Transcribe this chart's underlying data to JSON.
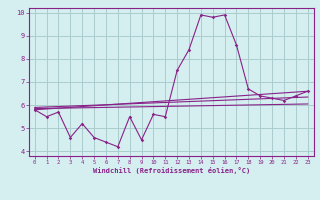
{
  "xlabel": "Windchill (Refroidissement éolien,°C)",
  "ylabel": "",
  "bg_color": "#d5eef0",
  "grid_color": "#aacccc",
  "line_color": "#882288",
  "xlim": [
    -0.5,
    23.5
  ],
  "ylim": [
    3.8,
    10.2
  ],
  "xticks": [
    0,
    1,
    2,
    3,
    4,
    5,
    6,
    7,
    8,
    9,
    10,
    11,
    12,
    13,
    14,
    15,
    16,
    17,
    18,
    19,
    20,
    21,
    22,
    23
  ],
  "yticks": [
    4,
    5,
    6,
    7,
    8,
    9,
    10
  ],
  "line1_x": [
    0,
    1,
    2,
    3,
    4,
    5,
    6,
    7,
    8,
    9,
    10,
    11,
    12,
    13,
    14,
    15,
    16,
    17,
    18,
    19,
    20,
    21,
    22,
    23
  ],
  "line1_y": [
    5.8,
    5.5,
    5.7,
    4.6,
    5.2,
    4.6,
    4.4,
    4.2,
    5.5,
    4.5,
    5.6,
    5.5,
    7.5,
    8.4,
    9.9,
    9.8,
    9.9,
    8.6,
    6.7,
    6.4,
    6.3,
    6.2,
    6.4,
    6.6
  ],
  "line2_x": [
    0,
    23
  ],
  "line2_y": [
    5.8,
    6.6
  ],
  "line3_x": [
    0,
    23
  ],
  "line3_y": [
    5.85,
    6.05
  ],
  "line4_x": [
    0,
    23
  ],
  "line4_y": [
    5.9,
    6.35
  ]
}
